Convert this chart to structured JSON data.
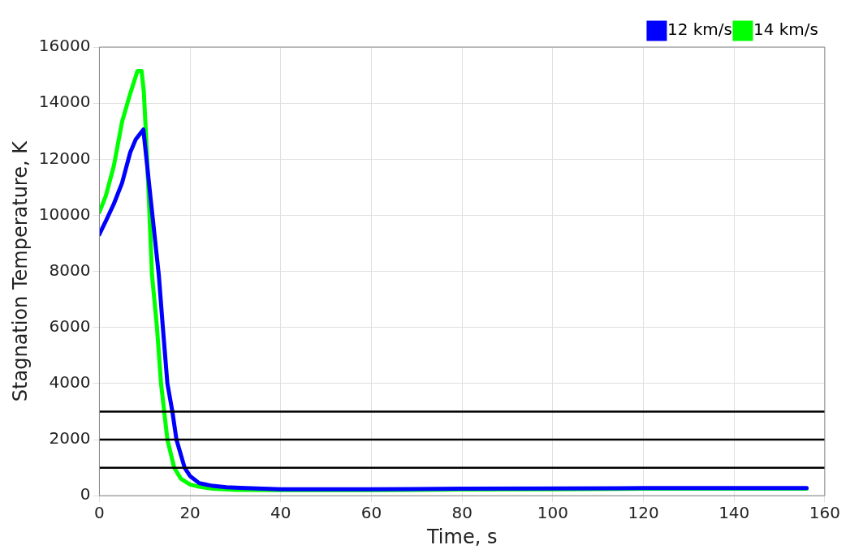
{
  "chart_data": {
    "type": "line",
    "xlabel": "Time, s",
    "ylabel": "Stagnation Temperature, K",
    "xlim": [
      0,
      160
    ],
    "ylim": [
      0,
      16000
    ],
    "xticks": [
      0,
      20,
      40,
      60,
      80,
      100,
      120,
      140,
      160
    ],
    "yticks": [
      0,
      2000,
      4000,
      6000,
      8000,
      10000,
      12000,
      14000,
      16000
    ],
    "grid": true,
    "legend": "top right",
    "marker": "none",
    "line_style": "solid",
    "ref_lines": [
      {
        "axis": "y",
        "value": 3000,
        "color": "#000000"
      },
      {
        "axis": "y",
        "value": 2000,
        "color": "#000000"
      },
      {
        "axis": "y",
        "value": 1000,
        "color": "#000000"
      }
    ],
    "series": [
      {
        "name": "12 km/s",
        "color": "#0000ff",
        "x": [
          0,
          1.4,
          3.2,
          5,
          6.8,
          8,
          9.7,
          11.3,
          13.1,
          14,
          15,
          16.1,
          17,
          18.8,
          20,
          22,
          25,
          28,
          31,
          40,
          60,
          80,
          100,
          120,
          140,
          156
        ],
        "values": [
          9320,
          9790,
          10410,
          11150,
          12240,
          12700,
          13060,
          10600,
          7880,
          6000,
          4000,
          3000,
          2000,
          1000,
          700,
          450,
          350,
          300,
          280,
          230,
          230,
          250,
          260,
          270,
          270,
          270
        ]
      },
      {
        "name": "14 km/s",
        "color": "#00ff00",
        "x": [
          0,
          1.4,
          3.2,
          5,
          6.8,
          8.4,
          9.3,
          9.8,
          10.3,
          10.9,
          11.6,
          12.7,
          13.6,
          14.3,
          15,
          16.5,
          18,
          20,
          22,
          25,
          30,
          40,
          60,
          80,
          100,
          120,
          140,
          156
        ],
        "values": [
          10110,
          10680,
          11770,
          13330,
          14340,
          15150,
          15150,
          14420,
          12800,
          10600,
          7880,
          6000,
          4000,
          3000,
          2000,
          1000,
          600,
          400,
          320,
          250,
          210,
          200,
          200,
          220,
          230,
          250,
          250,
          250
        ]
      }
    ]
  }
}
